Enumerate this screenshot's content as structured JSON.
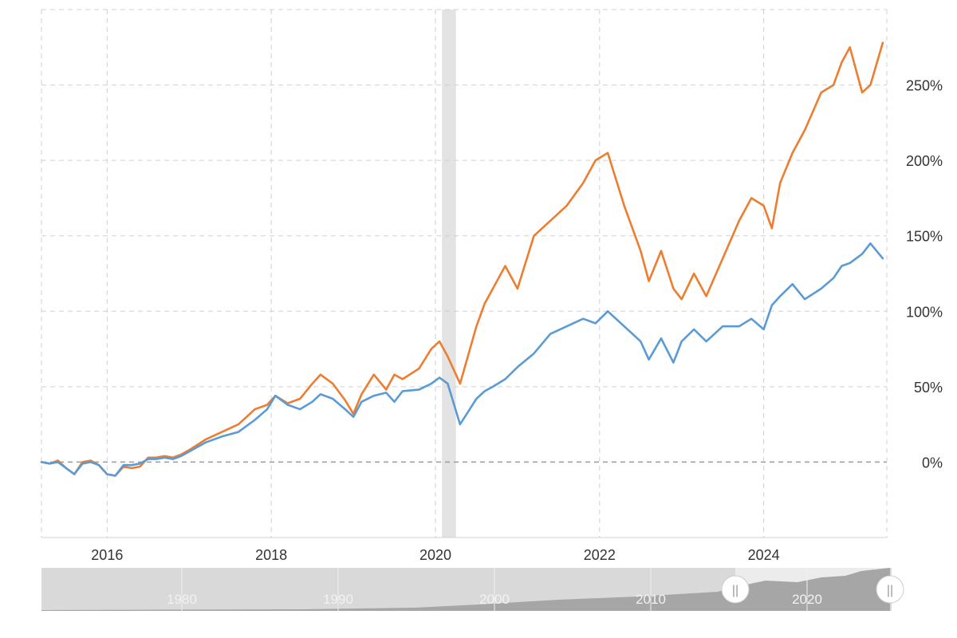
{
  "chart_data": {
    "type": "line",
    "title": "",
    "xlabel": "",
    "ylabel": "",
    "x_range": [
      2015.2,
      2025.5
    ],
    "ylim": [
      -50,
      300
    ],
    "grid": true,
    "legend": "none",
    "y_ticks": [
      {
        "value": 0,
        "label": "0%"
      },
      {
        "value": 50,
        "label": "50%"
      },
      {
        "value": 100,
        "label": "100%"
      },
      {
        "value": 150,
        "label": "150%"
      },
      {
        "value": 200,
        "label": "200%"
      },
      {
        "value": 250,
        "label": "250%"
      }
    ],
    "x_ticks": [
      {
        "value": 2016,
        "label": "2016"
      },
      {
        "value": 2018,
        "label": "2018"
      },
      {
        "value": 2020,
        "label": "2020"
      },
      {
        "value": 2022,
        "label": "2022"
      },
      {
        "value": 2024,
        "label": "2024"
      }
    ],
    "recession_band": [
      2020.08,
      2020.25
    ],
    "series": [
      {
        "color": "#ed7d31",
        "x": [
          2015.2,
          2015.3,
          2015.4,
          2015.5,
          2015.6,
          2015.7,
          2015.8,
          2015.9,
          2016.0,
          2016.1,
          2016.2,
          2016.3,
          2016.4,
          2016.5,
          2016.6,
          2016.7,
          2016.8,
          2016.9,
          2017.0,
          2017.2,
          2017.4,
          2017.6,
          2017.8,
          2017.95,
          2018.05,
          2018.2,
          2018.35,
          2018.5,
          2018.6,
          2018.75,
          2018.9,
          2019.0,
          2019.1,
          2019.25,
          2019.4,
          2019.5,
          2019.6,
          2019.8,
          2019.95,
          2020.05,
          2020.15,
          2020.3,
          2020.5,
          2020.6,
          2020.7,
          2020.85,
          2021.0,
          2021.2,
          2021.4,
          2021.6,
          2021.8,
          2021.95,
          2022.1,
          2022.3,
          2022.5,
          2022.6,
          2022.75,
          2022.9,
          2023.0,
          2023.15,
          2023.3,
          2023.5,
          2023.7,
          2023.85,
          2024.0,
          2024.1,
          2024.2,
          2024.35,
          2024.5,
          2024.7,
          2024.85,
          2024.95,
          2025.05,
          2025.2,
          2025.3,
          2025.45
        ],
        "y": [
          0,
          -1,
          1,
          -4,
          -8,
          0,
          1,
          -2,
          -8,
          -9,
          -3,
          -4,
          -3,
          3,
          3,
          4,
          3,
          5,
          8,
          15,
          20,
          25,
          35,
          38,
          44,
          39,
          42,
          52,
          58,
          52,
          41,
          32,
          45,
          58,
          48,
          58,
          55,
          62,
          75,
          80,
          70,
          52,
          90,
          105,
          115,
          130,
          115,
          150,
          160,
          170,
          185,
          200,
          205,
          170,
          140,
          120,
          140,
          115,
          108,
          125,
          110,
          135,
          160,
          175,
          170,
          155,
          185,
          205,
          220,
          245,
          250,
          265,
          275,
          245,
          250,
          278
        ]
      },
      {
        "color": "#5b9bd5",
        "x": [
          2015.2,
          2015.3,
          2015.4,
          2015.5,
          2015.6,
          2015.7,
          2015.8,
          2015.9,
          2016.0,
          2016.1,
          2016.2,
          2016.3,
          2016.4,
          2016.5,
          2016.6,
          2016.7,
          2016.8,
          2016.9,
          2017.0,
          2017.2,
          2017.4,
          2017.6,
          2017.8,
          2017.95,
          2018.05,
          2018.2,
          2018.35,
          2018.5,
          2018.6,
          2018.75,
          2018.9,
          2019.0,
          2019.1,
          2019.25,
          2019.4,
          2019.5,
          2019.6,
          2019.8,
          2019.95,
          2020.05,
          2020.15,
          2020.3,
          2020.5,
          2020.6,
          2020.7,
          2020.85,
          2021.0,
          2021.2,
          2021.4,
          2021.6,
          2021.8,
          2021.95,
          2022.1,
          2022.3,
          2022.5,
          2022.6,
          2022.75,
          2022.9,
          2023.0,
          2023.15,
          2023.3,
          2023.5,
          2023.7,
          2023.85,
          2024.0,
          2024.1,
          2024.2,
          2024.35,
          2024.5,
          2024.7,
          2024.85,
          2024.95,
          2025.05,
          2025.2,
          2025.3,
          2025.45
        ],
        "y": [
          0,
          -1,
          0,
          -4,
          -8,
          -1,
          0,
          -2,
          -8,
          -9,
          -2,
          -2,
          -1,
          2,
          2,
          3,
          2,
          4,
          7,
          13,
          17,
          20,
          28,
          35,
          44,
          38,
          35,
          40,
          45,
          42,
          35,
          30,
          40,
          44,
          46,
          40,
          47,
          48,
          52,
          56,
          52,
          25,
          42,
          47,
          50,
          55,
          63,
          72,
          85,
          90,
          95,
          92,
          100,
          90,
          80,
          68,
          82,
          66,
          80,
          88,
          80,
          90,
          90,
          95,
          88,
          104,
          110,
          118,
          108,
          115,
          122,
          130,
          132,
          138,
          145,
          135
        ]
      }
    ],
    "navigator": {
      "labels": [
        "1980",
        "1990",
        "2000",
        "2010",
        "2020"
      ],
      "handle_left": "||",
      "handle_right": "||"
    }
  }
}
